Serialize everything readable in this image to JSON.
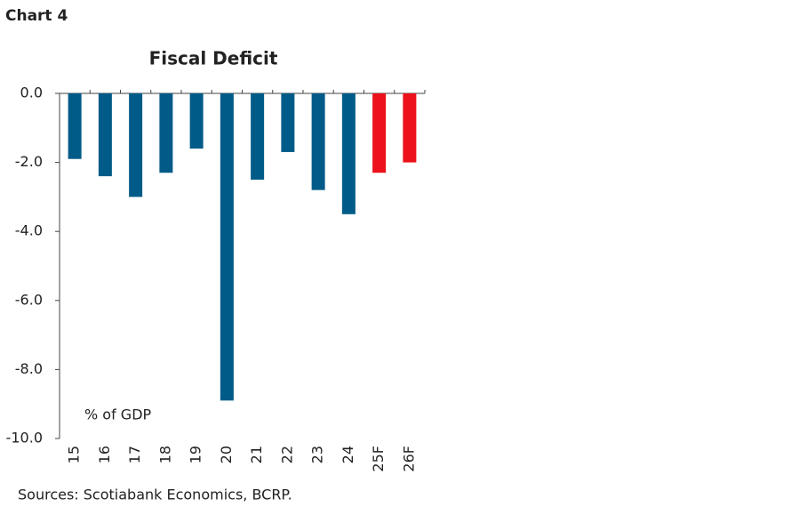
{
  "chart_data": {
    "type": "bar",
    "label": "Chart 4",
    "title": "Fiscal Deficit",
    "annotation": "% of GDP",
    "source": "Sources: Scotiabank Economics, BCRP.",
    "categories": [
      "15",
      "16",
      "17",
      "18",
      "19",
      "20",
      "21",
      "22",
      "23",
      "24",
      "25F",
      "26F"
    ],
    "values": [
      -1.9,
      -2.4,
      -3.0,
      -2.3,
      -1.6,
      -8.9,
      -2.5,
      -1.7,
      -2.8,
      -3.5,
      -2.3,
      -2.0
    ],
    "colors": [
      "#005b88",
      "#005b88",
      "#005b88",
      "#005b88",
      "#005b88",
      "#005b88",
      "#005b88",
      "#005b88",
      "#005b88",
      "#005b88",
      "#ec111a",
      "#ec111a"
    ],
    "ylim": [
      0,
      -10
    ],
    "yticks": [
      {
        "value": 0,
        "label": "0.0"
      },
      {
        "value": -2,
        "label": "-2.0"
      },
      {
        "value": -4,
        "label": "-4.0"
      },
      {
        "value": -6,
        "label": "-6.0"
      },
      {
        "value": -8,
        "label": "-8.0"
      },
      {
        "value": -10,
        "label": "-10.0"
      }
    ],
    "grid": false
  }
}
